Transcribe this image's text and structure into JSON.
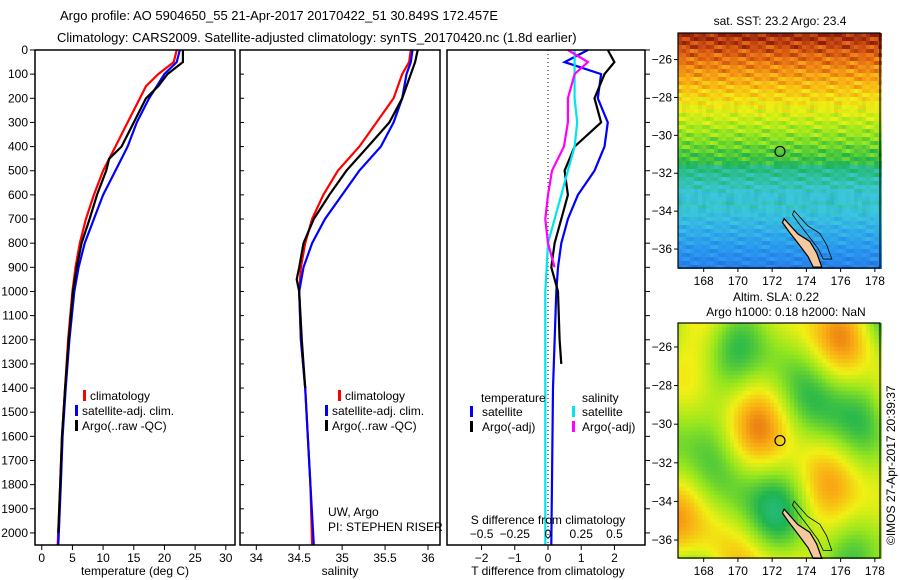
{
  "header": {
    "title_line1": "Argo profile: AO 5904650_55 21-Apr-2017 20170422_51 30.849S 172.457E",
    "title_line2": "Climatology: CARS2009. Satellite-adjusted climatology: synTS_20170420.nc (1.8d earlier)"
  },
  "colors": {
    "climatology": "#ff0000",
    "satellite": "#0000ff",
    "argo": "#000000",
    "sal_satellite": "#00e5ee",
    "sal_argo": "#ff00ff",
    "land": "#f5c8a0"
  },
  "chart_data": [
    {
      "type": "line",
      "name": "temperature-profile",
      "xlabel": "temperature (deg C)",
      "ylabel": "depth",
      "xlim": [
        -1.1,
        31.5
      ],
      "ylim": [
        2050,
        0
      ],
      "xticks": [
        0,
        5,
        10,
        15,
        20,
        25,
        30
      ],
      "yticks": [
        0,
        100,
        200,
        300,
        400,
        500,
        600,
        700,
        800,
        900,
        1000,
        1100,
        1200,
        1300,
        1400,
        1500,
        1600,
        1700,
        1800,
        1900,
        2000
      ],
      "legend": [
        "climatology",
        "satellite-adj. clim.",
        "Argo(..raw -QC)"
      ],
      "series": [
        {
          "name": "climatology",
          "color": "#ff0000",
          "depth": [
            0,
            50,
            100,
            150,
            200,
            300,
            400,
            500,
            600,
            700,
            800,
            900,
            1000,
            1200,
            1400,
            1600,
            1800,
            2050
          ],
          "values": [
            22,
            21.5,
            19,
            17,
            16,
            14,
            12,
            10,
            8.5,
            7.2,
            6.2,
            5.5,
            5,
            4.3,
            3.8,
            3.3,
            3,
            2.6
          ]
        },
        {
          "name": "satellite-adj. clim.",
          "color": "#0000ff",
          "depth": [
            0,
            50,
            100,
            200,
            300,
            400,
            500,
            600,
            700,
            800,
            900,
            1000,
            1200,
            1400,
            1600,
            1800,
            2050
          ],
          "values": [
            22.5,
            22,
            20,
            17.5,
            15.5,
            14,
            12,
            10,
            8.5,
            7,
            6,
            5.3,
            4.5,
            3.9,
            3.4,
            3.1,
            2.7
          ]
        },
        {
          "name": "Argo(..raw -QC)",
          "color": "#000000",
          "depth": [
            0,
            50,
            70,
            100,
            150,
            200,
            300,
            400,
            450,
            500,
            600,
            700,
            800,
            900,
            1000,
            1200,
            1400,
            1600,
            1800,
            2000
          ],
          "values": [
            23,
            23,
            22,
            20.5,
            19,
            17,
            15,
            13,
            11,
            10.5,
            9,
            7.8,
            6.5,
            5.7,
            5.1,
            4.4,
            3.8,
            3.3,
            3,
            2.7
          ]
        }
      ]
    },
    {
      "type": "line",
      "name": "salinity-profile",
      "xlabel": "salinity",
      "xlim": [
        33.81,
        36.14
      ],
      "ylim": [
        2050,
        0
      ],
      "xticks": [
        34,
        34.5,
        35,
        35.5,
        36
      ],
      "legend": [
        "climatology",
        "satellite-adj. clim.",
        "Argo(..raw -QC)"
      ],
      "credit": [
        "UW, Argo",
        "PI: STEPHEN RISER"
      ],
      "series": [
        {
          "name": "climatology",
          "color": "#ff0000",
          "depth": [
            0,
            50,
            100,
            200,
            300,
            400,
            500,
            600,
            700,
            800,
            900,
            1000,
            1200,
            1400,
            1600,
            1800,
            2050
          ],
          "values": [
            35.8,
            35.78,
            35.7,
            35.6,
            35.4,
            35.2,
            34.95,
            34.78,
            34.65,
            34.57,
            34.52,
            34.5,
            34.52,
            34.57,
            34.6,
            34.63,
            34.65
          ]
        },
        {
          "name": "satellite-adj. clim.",
          "color": "#0000ff",
          "depth": [
            0,
            50,
            100,
            200,
            300,
            400,
            500,
            600,
            700,
            800,
            900,
            1000,
            1200,
            1400,
            1600,
            1800,
            2050
          ],
          "values": [
            35.82,
            35.8,
            35.75,
            35.7,
            35.6,
            35.45,
            35.2,
            35.0,
            34.8,
            34.65,
            34.55,
            34.5,
            34.52,
            34.57,
            34.6,
            34.63,
            34.67
          ]
        },
        {
          "name": "Argo(..raw -QC)",
          "color": "#000000",
          "depth": [
            0,
            50,
            100,
            200,
            300,
            400,
            500,
            600,
            700,
            800,
            900,
            950,
            1000,
            1200,
            1400
          ],
          "values": [
            35.88,
            35.85,
            35.8,
            35.7,
            35.55,
            35.3,
            35.05,
            34.85,
            34.67,
            34.55,
            34.5,
            34.47,
            34.5,
            34.53,
            34.57
          ]
        }
      ]
    },
    {
      "type": "line",
      "name": "difference-profile",
      "xlabel": "T difference from climatology",
      "x2label": "S difference from climatology",
      "xlim": [
        -3.04,
        2.92
      ],
      "ylim": [
        2050,
        0
      ],
      "xticks": [
        -2,
        -1,
        0,
        1,
        2
      ],
      "x2ticks": [
        -0.5,
        -0.25,
        0,
        0.25,
        0.5
      ],
      "x2tick_labels": [
        "-0.5",
        "-0.25",
        "0",
        "0.25",
        "0.5"
      ],
      "legend_temperature": {
        "header": "temperature",
        "items": [
          "satellite",
          "Argo(-adj)"
        ]
      },
      "legend_salinity": {
        "header": "salinity",
        "items": [
          "satellite",
          "Argo(-adj)"
        ]
      },
      "series": [
        {
          "name": "T satellite",
          "axis": "T",
          "color": "#0000ff",
          "depth": [
            0,
            50,
            100,
            200,
            300,
            400,
            500,
            600,
            700,
            800,
            900,
            1000,
            1400,
            2050
          ],
          "values": [
            1.2,
            0.5,
            1.6,
            1.5,
            1.8,
            1.7,
            1.4,
            0.9,
            0.6,
            0.4,
            0.3,
            0.25,
            0.15,
            0.1
          ]
        },
        {
          "name": "T Argo(-adj)",
          "axis": "T",
          "color": "#000000",
          "depth": [
            0,
            50,
            100,
            200,
            300,
            400,
            500,
            600,
            700,
            800,
            900,
            1000,
            1200,
            1300
          ],
          "values": [
            1.8,
            2.0,
            1.7,
            1.4,
            1.6,
            0.8,
            0.5,
            0.6,
            0.4,
            0.2,
            0.1,
            0.3,
            0.35,
            0.4
          ]
        },
        {
          "name": "S satellite",
          "axis": "S",
          "color": "#00e5ee",
          "depth": [
            0,
            100,
            200,
            300,
            400,
            500,
            600,
            700,
            800,
            1000,
            2050
          ],
          "values": [
            0.2,
            0.2,
            0.2,
            0.22,
            0.2,
            0.15,
            0.1,
            0.05,
            0,
            -0.02,
            -0.02
          ]
        },
        {
          "name": "S Argo(-adj)",
          "axis": "S",
          "color": "#ff00ff",
          "depth": [
            0,
            50,
            100,
            200,
            300,
            400,
            500,
            600,
            700,
            800,
            900
          ],
          "values": [
            0.15,
            0.3,
            0.2,
            0.15,
            0.15,
            0.12,
            0.03,
            0,
            -0.02,
            0,
            0.05
          ]
        }
      ]
    },
    {
      "type": "heatmap",
      "name": "sst-map",
      "title": "sat. SST: 23.2 Argo: 23.4",
      "lon_range": [
        166.5,
        178.3
      ],
      "lat_range": [
        -37,
        -24.6
      ],
      "xticks": [
        168,
        170,
        172,
        174,
        176,
        178
      ],
      "yticks": [
        -26,
        -28,
        -30,
        -32,
        -34,
        -36
      ],
      "argo_position": {
        "lon": 172.457,
        "lat": -30.849
      }
    },
    {
      "type": "heatmap",
      "name": "sla-map",
      "title_line1": "Altim. SLA: 0.22",
      "title_line2": "Argo h1000: 0.18 h2000: NaN",
      "lon_range": [
        166.5,
        178.3
      ],
      "lat_range": [
        -36.93,
        -24.76
      ],
      "xticks": [
        168,
        170,
        172,
        174,
        176,
        178
      ],
      "yticks": [
        -26,
        -28,
        -30,
        -32,
        -34,
        -36
      ],
      "argo_position": {
        "lon": 172.457,
        "lat": -30.849
      }
    }
  ],
  "footer": {
    "stamp": "©IMOS 27-Apr-2017 20:39:37"
  }
}
